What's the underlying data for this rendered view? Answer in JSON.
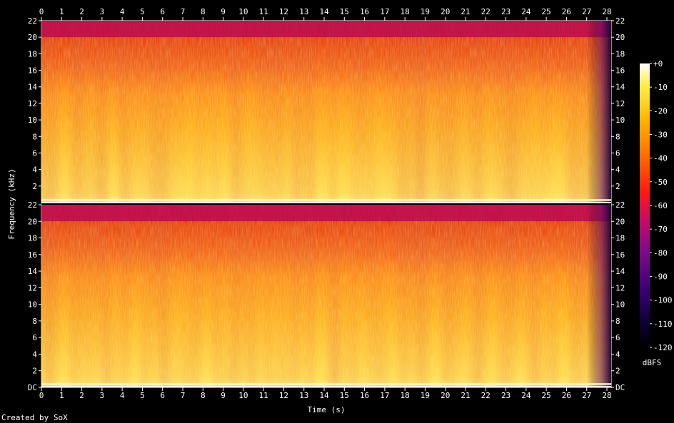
{
  "chart_data": {
    "type": "heatmap",
    "title": "",
    "xlabel": "Time (s)",
    "ylabel": "Frequency (kHz)",
    "xlim": [
      0,
      28
    ],
    "ylim_khz": [
      0,
      22
    ],
    "x_ticks": [
      "0",
      "1",
      "2",
      "3",
      "4",
      "5",
      "6",
      "7",
      "8",
      "9",
      "10",
      "11",
      "12",
      "13",
      "14",
      "15",
      "16",
      "17",
      "18",
      "19",
      "20",
      "21",
      "22",
      "23",
      "24",
      "25",
      "26",
      "27",
      "28"
    ],
    "y_ticks_left": [
      "22",
      "20",
      "18",
      "16",
      "14",
      "12",
      "10",
      "8",
      "6",
      "4",
      "2",
      "22",
      "20",
      "18",
      "16",
      "14",
      "12",
      "10",
      "8",
      "6",
      "4",
      "2",
      "DC"
    ],
    "y_ticks_right": [
      "22",
      "20",
      "18",
      "16",
      "14",
      "12",
      "10",
      "8",
      "6",
      "4",
      "2",
      "22",
      "20",
      "18",
      "16",
      "14",
      "12",
      "10",
      "8",
      "6",
      "4",
      "2",
      "DC"
    ],
    "y_tick_values_khz": [
      22,
      20,
      18,
      16,
      14,
      12,
      10,
      8,
      6,
      4,
      2
    ],
    "channels": 2,
    "colorbar": {
      "label": "dBFS",
      "ticks": [
        "+0",
        "-10",
        "-20",
        "-30",
        "-40",
        "-50",
        "-60",
        "-70",
        "-80",
        "-90",
        "-100",
        "-110",
        "-120"
      ],
      "range_db": [
        -120,
        0
      ]
    },
    "observations": {
      "brickwall_cutoff_khz": 20,
      "energy_above_cutoff_db": -60,
      "energy_below_cutoff_db": [
        -45,
        -15
      ],
      "audio_end_s": 27.5
    },
    "footer": "Created by SoX"
  }
}
